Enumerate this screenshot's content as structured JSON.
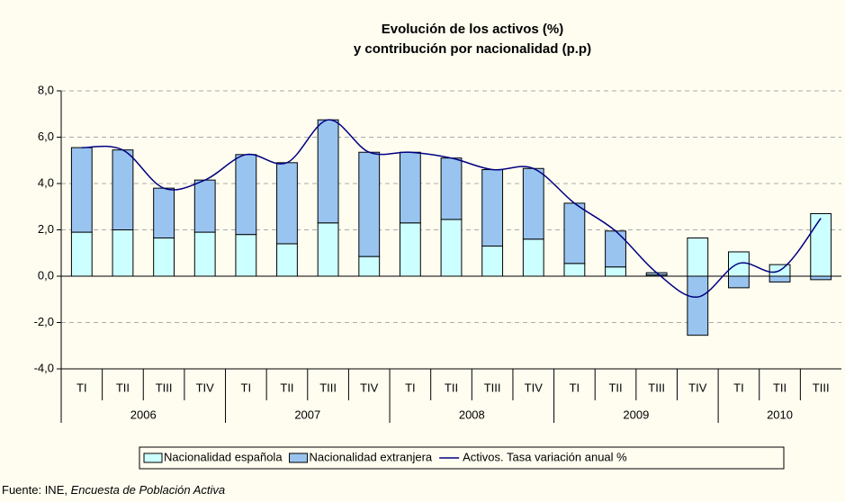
{
  "chart_data": {
    "type": "bar",
    "title": [
      "Evolución de los activos (%)",
      "y contribución por nacionalidad (p.p)"
    ],
    "category_groups": [
      {
        "label": "2006",
        "categories": [
          "TI",
          "TII",
          "TIII",
          "TIV"
        ]
      },
      {
        "label": "2007",
        "categories": [
          "TI",
          "TII",
          "TIII",
          "TIV"
        ]
      },
      {
        "label": "2008",
        "categories": [
          "TI",
          "TII",
          "TIII",
          "TIV"
        ]
      },
      {
        "label": "2009",
        "categories": [
          "TI",
          "TII",
          "TIII",
          "TIV"
        ]
      },
      {
        "label": "2010",
        "categories": [
          "TI",
          "TII",
          "TIII"
        ]
      }
    ],
    "series": [
      {
        "name": "Nacionalidad española",
        "type": "bar",
        "color": "#ccffff",
        "values": [
          1.9,
          2.0,
          1.65,
          1.9,
          1.8,
          1.4,
          2.3,
          0.85,
          2.3,
          2.45,
          1.3,
          1.6,
          0.55,
          0.4,
          0.05,
          1.65,
          1.05,
          0.5,
          2.7
        ]
      },
      {
        "name": "Nacionalidad extranjera",
        "type": "bar",
        "color": "#99c4f0",
        "values": [
          3.65,
          3.45,
          2.15,
          2.25,
          3.45,
          3.5,
          4.45,
          4.5,
          3.05,
          2.65,
          3.3,
          3.05,
          2.6,
          1.55,
          0.1,
          -2.55,
          -0.5,
          -0.25,
          -0.15
        ]
      },
      {
        "name": "Activos. Tasa variación anual %",
        "type": "line",
        "color": "#000080",
        "values": [
          5.55,
          5.45,
          3.8,
          4.15,
          5.25,
          4.9,
          6.75,
          5.35,
          5.35,
          5.1,
          4.6,
          4.65,
          3.15,
          1.95,
          0.15,
          -0.9,
          0.55,
          0.25,
          2.5
        ]
      }
    ],
    "ylim": [
      -4,
      8
    ],
    "yticks": [
      {
        "value": -4,
        "label": "-4,0"
      },
      {
        "value": -2,
        "label": "-2,0"
      },
      {
        "value": 0,
        "label": "0,0"
      },
      {
        "value": 2,
        "label": "2,0"
      },
      {
        "value": 4,
        "label": "4,0"
      },
      {
        "value": 6,
        "label": "6,0"
      },
      {
        "value": 8,
        "label": "8,0"
      }
    ],
    "grid": true,
    "legend": "bottom",
    "source_prefix": "Fuente: INE, ",
    "source_title": "Encuesta de Población Activa"
  }
}
